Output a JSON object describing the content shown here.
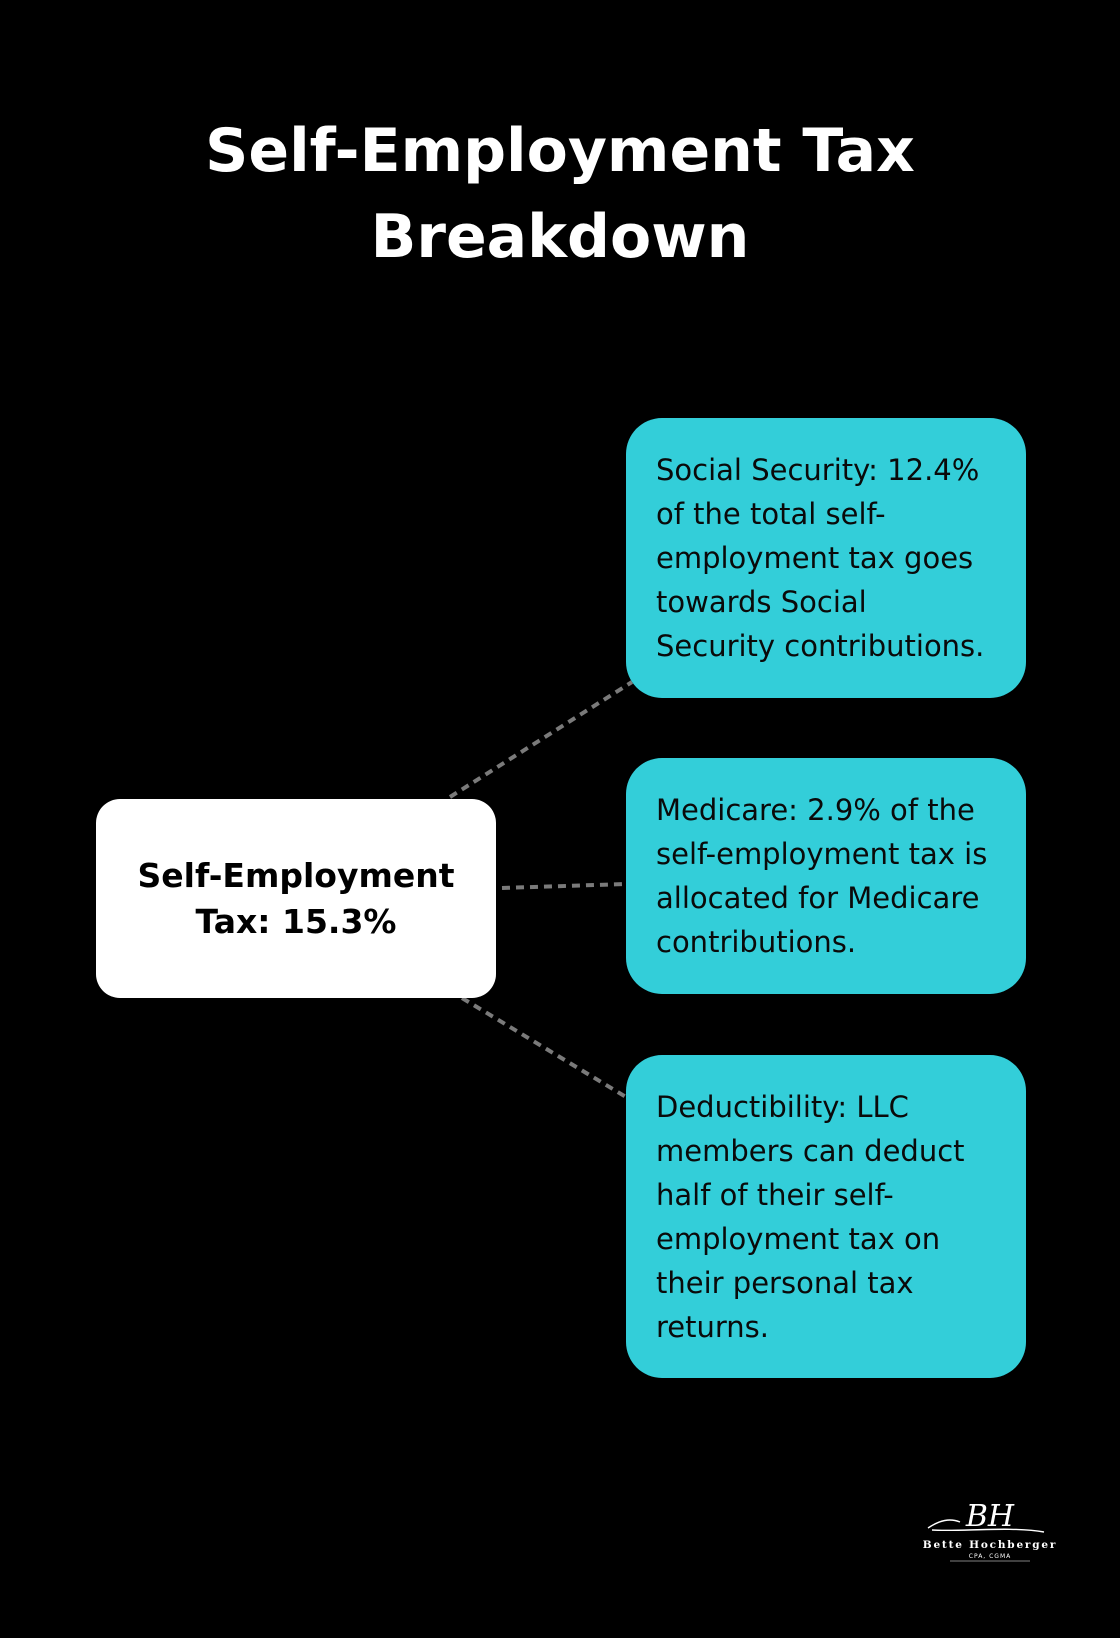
{
  "title": {
    "line1": "Self-Employment Tax",
    "line2": "Breakdown"
  },
  "center": {
    "line1": "Self-Employment",
    "line2": "Tax: 15.3%"
  },
  "boxes": {
    "social_security": {
      "lines": [
        "Social Security: 12.4%",
        "of the total self-",
        "employment tax goes",
        "towards Social",
        "Security contributions."
      ]
    },
    "medicare": {
      "lines": [
        "Medicare: 2.9% of the",
        "self-employment tax is",
        "allocated for Medicare",
        "contributions."
      ]
    },
    "deductibility": {
      "lines": [
        "Deductibility: LLC",
        "members can deduct",
        "half of their self-",
        "employment tax on",
        "their personal tax",
        "returns."
      ]
    }
  },
  "logo": {
    "monogram": "BH",
    "name": "Bette Hochberger",
    "credentials": "CPA, CGMA"
  },
  "colors": {
    "background": "#000000",
    "center_box": "#ffffff",
    "info_box": "#33ced9",
    "connector": "#7a7a7a"
  }
}
